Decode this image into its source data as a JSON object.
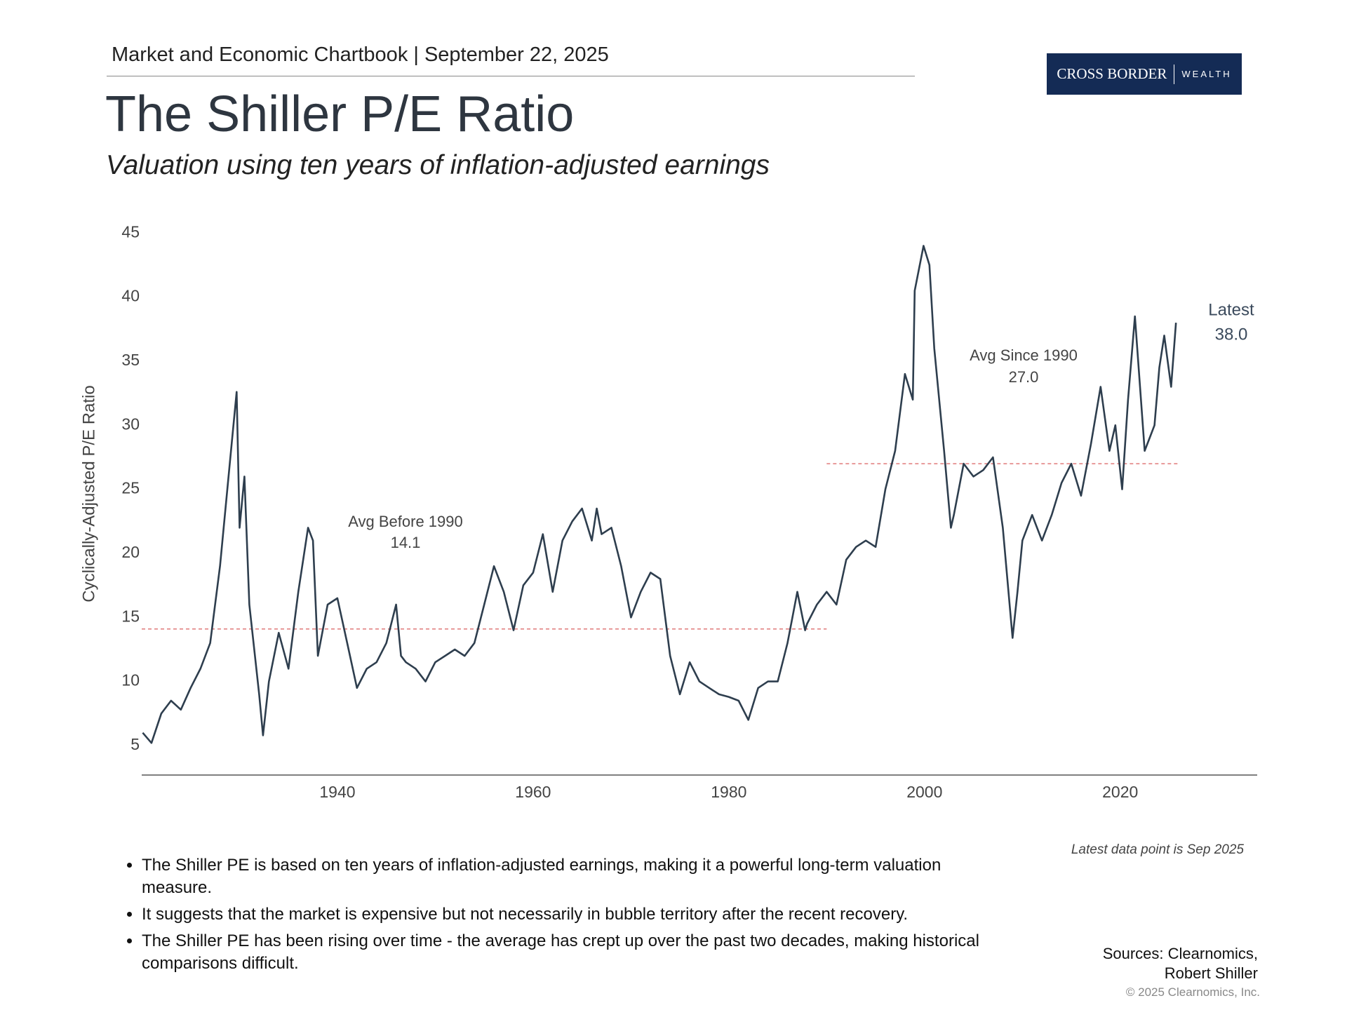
{
  "header": {
    "top_line": "Market and Economic Chartbook | September 22, 2025",
    "logo_main": "CROSS BORDER",
    "logo_sub": "WEALTH"
  },
  "chart_data": {
    "type": "line",
    "title": "The Shiller P/E Ratio",
    "subtitle": "Valuation using ten years of inflation-adjusted earnings",
    "y_label": "Cyclically-Adjusted P/E Ratio",
    "note": "Latest data point is Sep 2025",
    "xlim": [
      1920,
      2034
    ],
    "xticks": [
      1940,
      1960,
      1980,
      2000,
      2020
    ],
    "ylim": [
      2.7,
      46
    ],
    "yticks": [
      5,
      10,
      15,
      20,
      25,
      30,
      35,
      40,
      45
    ],
    "series": [
      {
        "name": "Shiller P/E",
        "color": "#2e3e4e",
        "x": [
          1920.1,
          1921,
          1922,
          1923,
          1924,
          1925,
          1926,
          1927,
          1928,
          1929,
          1929.7,
          1930,
          1930.5,
          1931,
          1932,
          1932.4,
          1933,
          1934,
          1935,
          1936,
          1937,
          1937.5,
          1938,
          1939,
          1940,
          1941,
          1942,
          1943,
          1944,
          1945,
          1946,
          1946.5,
          1947,
          1948,
          1949,
          1950,
          1951,
          1952,
          1953,
          1954,
          1955,
          1956,
          1957,
          1958,
          1959,
          1960,
          1961,
          1962,
          1963,
          1964,
          1965,
          1966,
          1966.5,
          1967,
          1968,
          1969,
          1970,
          1971,
          1972,
          1973,
          1974,
          1975,
          1976,
          1977,
          1978,
          1979,
          1980,
          1981,
          1982,
          1983,
          1984,
          1985,
          1986,
          1987,
          1987.8,
          1988,
          1989,
          1990,
          1991,
          1992,
          1993,
          1994,
          1995,
          1996,
          1997,
          1998,
          1998.8,
          1999,
          1999.9,
          2000.5,
          2001,
          2002,
          2002.7,
          2003,
          2004,
          2005,
          2006,
          2007,
          2008,
          2009,
          2009.5,
          2010,
          2011,
          2012,
          2013,
          2014,
          2015,
          2016,
          2017,
          2018,
          2018.9,
          2019.5,
          2020.2,
          2020.8,
          2021.5,
          2022.5,
          2023,
          2023.5,
          2024,
          2024.5,
          2025.2,
          2025.7
        ],
        "values": [
          6.0,
          5.2,
          7.5,
          8.5,
          7.8,
          9.5,
          11,
          13,
          19,
          27,
          32.6,
          22,
          26,
          16,
          9,
          5.8,
          10,
          13.8,
          11,
          17,
          22,
          21,
          12,
          16,
          16.5,
          13,
          9.5,
          11,
          11.5,
          13,
          16,
          12,
          11.5,
          11,
          10,
          11.5,
          12,
          12.5,
          12,
          13,
          16,
          19,
          17,
          14,
          17.5,
          18.5,
          21.5,
          17,
          21,
          22.5,
          23.5,
          21,
          23.5,
          21.5,
          22,
          19,
          15,
          17,
          18.5,
          18,
          12,
          9,
          11.5,
          10,
          9.5,
          9,
          8.8,
          8.5,
          7,
          9.5,
          10,
          10,
          13,
          17,
          14,
          14.5,
          16,
          17,
          16,
          19.5,
          20.5,
          21,
          20.5,
          25,
          28,
          34,
          32,
          40.5,
          44,
          42.5,
          36,
          28,
          22,
          23,
          27,
          26,
          26.5,
          27.5,
          22,
          13.4,
          17,
          21,
          23,
          21,
          23,
          25.5,
          27,
          24.5,
          28.5,
          33,
          28,
          30,
          25,
          32,
          38.5,
          28,
          29,
          30,
          34.5,
          37,
          33,
          38
        ]
      }
    ],
    "avg_lines": [
      {
        "label": "Avg Before 1990",
        "value": 14.1,
        "x_start": 1920,
        "x_end": 1990,
        "color": "#e07a7a"
      },
      {
        "label": "Avg Since 1990",
        "value": {
          "value": 27,
          "label": "27.0"
        },
        "x_start": 1990,
        "x_end": 2026,
        "color": "#e07a7a"
      }
    ],
    "latest": {
      "label": "Latest",
      "value": {
        "value": 38,
        "label": "38.0"
      }
    }
  },
  "bullets": [
    "The Shiller PE is based on ten years of inflation-adjusted earnings, making it a powerful long-term valuation measure.",
    "It suggests that the market is expensive but not necessarily in bubble territory after the recent recovery.",
    "The Shiller PE has been rising over time - the average has crept up over the past two decades, making historical comparisons difficult."
  ],
  "footer": {
    "sources": [
      "Sources: Clearnomics,",
      "Robert Shiller"
    ],
    "copyright": "© 2025 Clearnomics, Inc."
  }
}
